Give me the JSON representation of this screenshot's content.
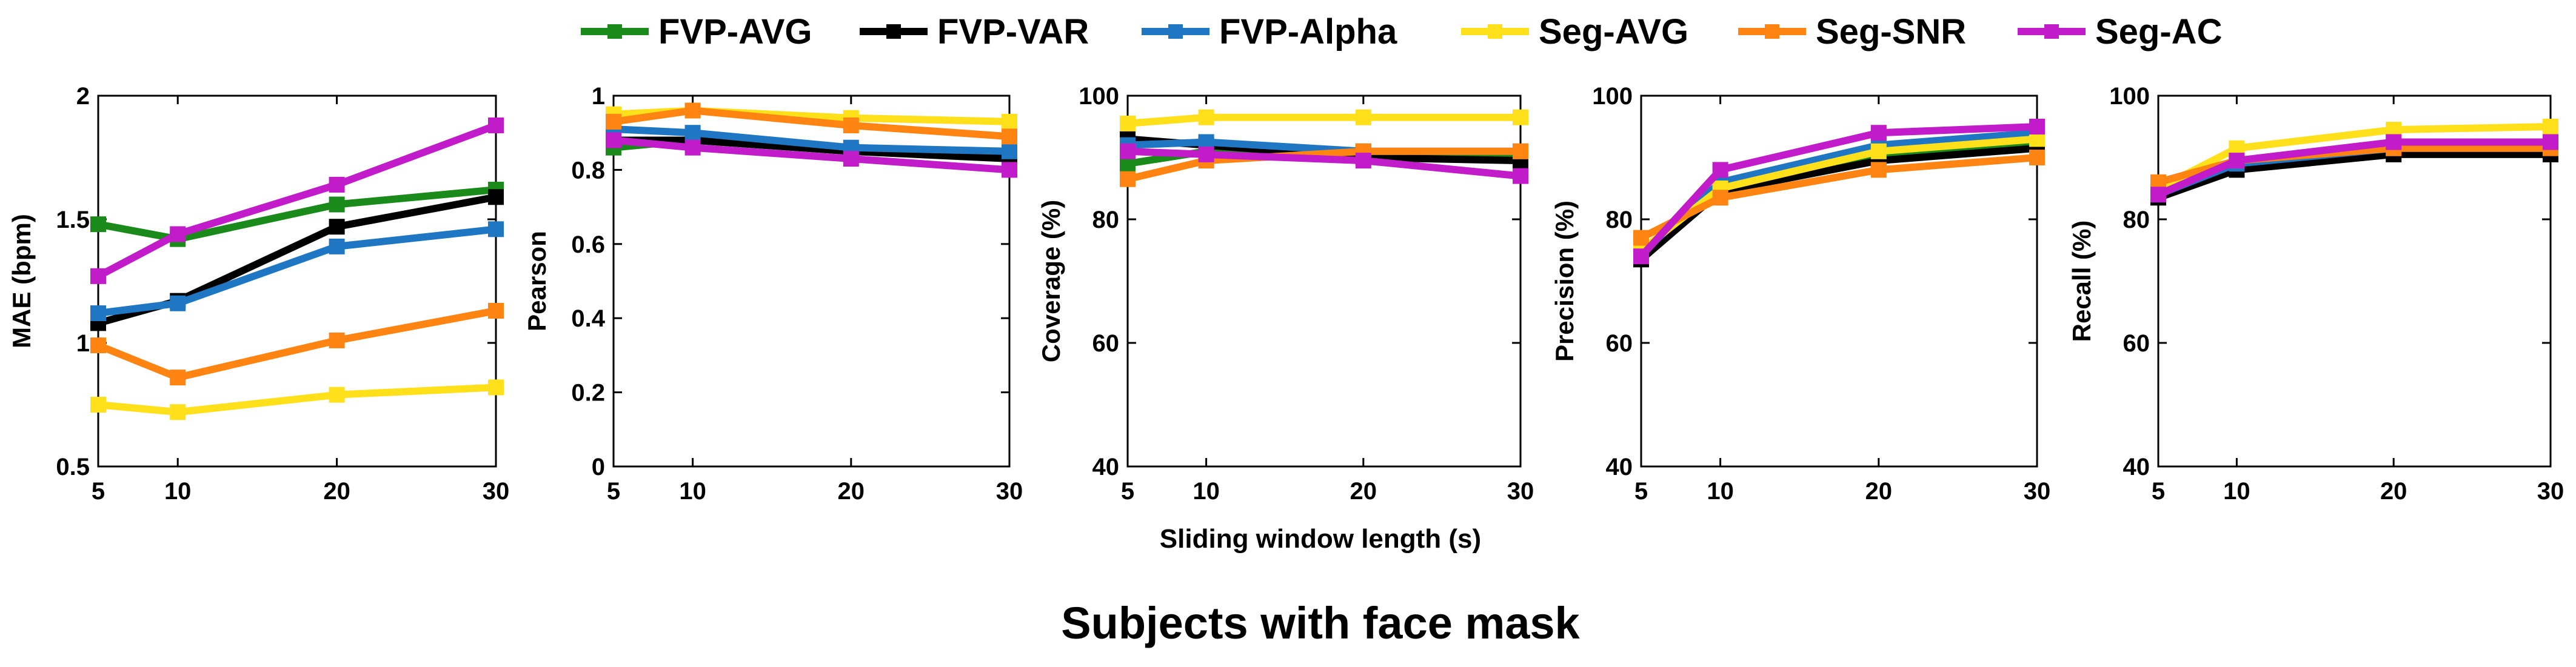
{
  "figure_title": "Subjects with face mask",
  "shared_xlabel": "Sliding window length (s)",
  "legend": [
    {
      "name": "FVP-AVG",
      "color": "#1a8a1a"
    },
    {
      "name": "FVP-VAR",
      "color": "#000000"
    },
    {
      "name": "FVP-Alpha",
      "color": "#1f77c4"
    },
    {
      "name": "Seg-AVG",
      "color": "#ffe01a"
    },
    {
      "name": "Seg-SNR",
      "color": "#ff8412"
    },
    {
      "name": "Seg-AC",
      "color": "#c21bc9"
    }
  ],
  "chart_data": [
    {
      "type": "line",
      "ylabel": "MAE (bpm)",
      "x": [
        5,
        10,
        20,
        30
      ],
      "xticks": [
        "5",
        "10",
        "20",
        "30"
      ],
      "xlim": [
        5,
        30
      ],
      "ylim": [
        0.5,
        2
      ],
      "yticks": [
        "0.5",
        "1",
        "1.5",
        "2"
      ],
      "yticks_values": [
        0.5,
        1,
        1.5,
        2
      ],
      "series": [
        {
          "name": "FVP-AVG",
          "values": [
            1.48,
            1.42,
            1.56,
            1.62
          ]
        },
        {
          "name": "FVP-VAR",
          "values": [
            1.08,
            1.17,
            1.47,
            1.59
          ]
        },
        {
          "name": "FVP-Alpha",
          "values": [
            1.12,
            1.16,
            1.39,
            1.46
          ]
        },
        {
          "name": "Seg-AVG",
          "values": [
            0.75,
            0.72,
            0.79,
            0.82
          ]
        },
        {
          "name": "Seg-SNR",
          "values": [
            0.99,
            0.86,
            1.01,
            1.13
          ]
        },
        {
          "name": "Seg-AC",
          "values": [
            1.27,
            1.44,
            1.64,
            1.88
          ]
        }
      ]
    },
    {
      "type": "line",
      "ylabel": "Pearson",
      "x": [
        5,
        10,
        20,
        30
      ],
      "xticks": [
        "5",
        "10",
        "20",
        "30"
      ],
      "xlim": [
        5,
        30
      ],
      "ylim": [
        0,
        1
      ],
      "yticks": [
        "0",
        "0.2",
        "0.4",
        "0.6",
        "0.8",
        "1"
      ],
      "yticks_values": [
        0,
        0.2,
        0.4,
        0.6,
        0.8,
        1
      ],
      "series": [
        {
          "name": "FVP-AVG",
          "values": [
            0.86,
            0.88,
            0.85,
            0.84
          ]
        },
        {
          "name": "FVP-VAR",
          "values": [
            0.88,
            0.88,
            0.85,
            0.83
          ]
        },
        {
          "name": "FVP-Alpha",
          "values": [
            0.91,
            0.9,
            0.86,
            0.85
          ]
        },
        {
          "name": "Seg-AVG",
          "values": [
            0.95,
            0.96,
            0.94,
            0.93
          ]
        },
        {
          "name": "Seg-SNR",
          "values": [
            0.93,
            0.96,
            0.92,
            0.89
          ]
        },
        {
          "name": "Seg-AC",
          "values": [
            0.88,
            0.86,
            0.83,
            0.8
          ]
        }
      ]
    },
    {
      "type": "line",
      "ylabel": "Coverage (%)",
      "x": [
        5,
        10,
        20,
        30
      ],
      "xticks": [
        "5",
        "10",
        "20",
        "30"
      ],
      "xlim": [
        5,
        30
      ],
      "ylim": [
        40,
        100
      ],
      "yticks": [
        "40",
        "60",
        "80",
        "100"
      ],
      "yticks_values": [
        40,
        60,
        80,
        100
      ],
      "series": [
        {
          "name": "FVP-AVG",
          "values": [
            89,
            91,
            91,
            90
          ]
        },
        {
          "name": "FVP-VAR",
          "values": [
            93,
            92,
            90,
            89.5
          ]
        },
        {
          "name": "FVP-Alpha",
          "values": [
            92,
            92.5,
            91,
            91
          ]
        },
        {
          "name": "Seg-AVG",
          "values": [
            95.5,
            96.5,
            96.5,
            96.5
          ]
        },
        {
          "name": "Seg-SNR",
          "values": [
            86.5,
            89.5,
            91,
            91
          ]
        },
        {
          "name": "Seg-AC",
          "values": [
            91,
            90.5,
            89.5,
            87
          ]
        }
      ]
    },
    {
      "type": "line",
      "ylabel": "Precision (%)",
      "x": [
        5,
        10,
        20,
        30
      ],
      "xticks": [
        "5",
        "10",
        "20",
        "30"
      ],
      "xlim": [
        5,
        30
      ],
      "ylim": [
        40,
        100
      ],
      "yticks": [
        "40",
        "60",
        "80",
        "100"
      ],
      "yticks_values": [
        40,
        60,
        80,
        100
      ],
      "series": [
        {
          "name": "FVP-AVG",
          "values": [
            74,
            85,
            90.5,
            92.5
          ]
        },
        {
          "name": "FVP-VAR",
          "values": [
            73.5,
            84.5,
            89.5,
            91.5
          ]
        },
        {
          "name": "FVP-Alpha",
          "values": [
            74.5,
            86,
            92,
            94
          ]
        },
        {
          "name": "Seg-AVG",
          "values": [
            75,
            85,
            91,
            93
          ]
        },
        {
          "name": "Seg-SNR",
          "values": [
            77,
            83.5,
            88,
            90
          ]
        },
        {
          "name": "Seg-AC",
          "values": [
            74,
            88,
            94,
            95
          ]
        }
      ]
    },
    {
      "type": "line",
      "ylabel": "Recall (%)",
      "x": [
        5,
        10,
        20,
        30
      ],
      "xticks": [
        "5",
        "10",
        "20",
        "30"
      ],
      "xlim": [
        5,
        30
      ],
      "ylim": [
        40,
        100
      ],
      "yticks": [
        "40",
        "60",
        "80",
        "100"
      ],
      "yticks_values": [
        40,
        60,
        80,
        100
      ],
      "series": [
        {
          "name": "FVP-AVG",
          "values": [
            84,
            89,
            91.5,
            91.5
          ]
        },
        {
          "name": "FVP-VAR",
          "values": [
            83.5,
            88,
            90.5,
            90.5
          ]
        },
        {
          "name": "FVP-Alpha",
          "values": [
            84,
            89,
            91.5,
            92
          ]
        },
        {
          "name": "Seg-AVG",
          "values": [
            85,
            91.5,
            94.5,
            95
          ]
        },
        {
          "name": "Seg-SNR",
          "values": [
            86,
            89.5,
            91.5,
            91.5
          ]
        },
        {
          "name": "Seg-AC",
          "values": [
            84,
            89.5,
            92.5,
            92.5
          ]
        }
      ]
    }
  ]
}
